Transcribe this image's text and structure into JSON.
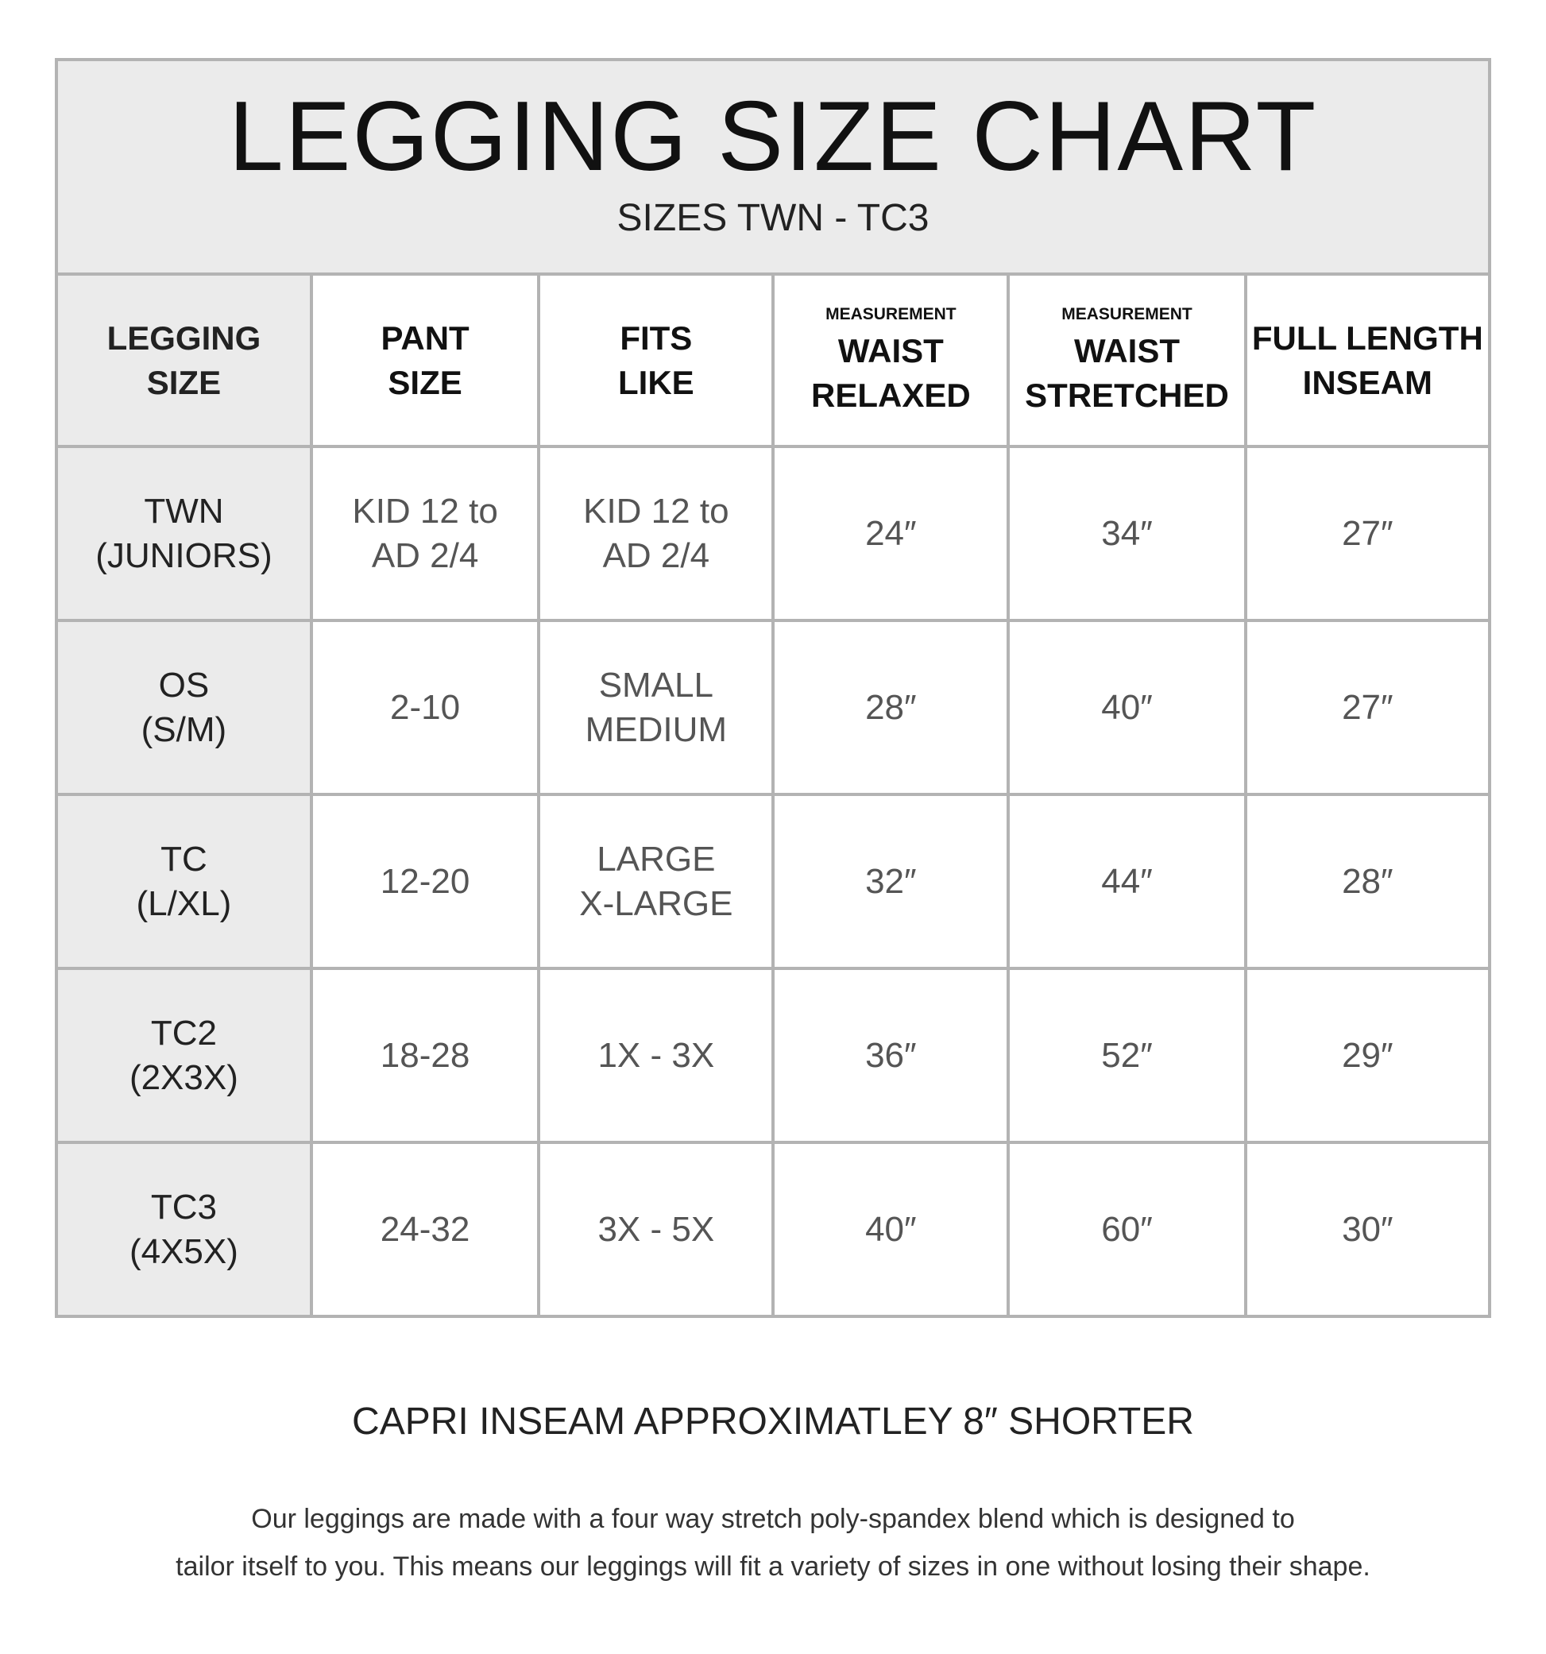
{
  "title": "LEGGING SIZE CHART",
  "subtitle": "SIZES TWN - TC3",
  "headers": [
    {
      "pre": "",
      "line1": "LEGGING",
      "line2": "SIZE"
    },
    {
      "pre": "",
      "line1": "PANT",
      "line2": "SIZE"
    },
    {
      "pre": "",
      "line1": "FITS",
      "line2": "LIKE"
    },
    {
      "pre": "MEASUREMENT",
      "line1": "WAIST",
      "line2": "RELAXED"
    },
    {
      "pre": "MEASUREMENT",
      "line1": "WAIST",
      "line2": "STRETCHED"
    },
    {
      "pre": "",
      "line1": "FULL LENGTH",
      "line2": "INSEAM"
    }
  ],
  "rows": [
    {
      "size": [
        "TWN",
        "(JUNIORS)"
      ],
      "pant": [
        "KID 12 to",
        "AD 2/4"
      ],
      "fits": [
        "KID 12 to",
        "AD 2/4"
      ],
      "relaxed": "24″",
      "stretched": "34″",
      "inseam": "27″"
    },
    {
      "size": [
        "OS",
        "(S/M)"
      ],
      "pant": [
        "2-10",
        ""
      ],
      "fits": [
        "SMALL",
        "MEDIUM"
      ],
      "relaxed": "28″",
      "stretched": "40″",
      "inseam": "27″"
    },
    {
      "size": [
        "TC",
        "(L/XL)"
      ],
      "pant": [
        "12-20",
        ""
      ],
      "fits": [
        "LARGE",
        "X-LARGE"
      ],
      "relaxed": "32″",
      "stretched": "44″",
      "inseam": "28″"
    },
    {
      "size": [
        "TC2",
        "(2X3X)"
      ],
      "pant": [
        "18-28",
        ""
      ],
      "fits": [
        "1X - 3X",
        ""
      ],
      "relaxed": "36″",
      "stretched": "52″",
      "inseam": "29″"
    },
    {
      "size": [
        "TC3",
        "(4X5X)"
      ],
      "pant": [
        "24-32",
        ""
      ],
      "fits": [
        "3X - 5X",
        ""
      ],
      "relaxed": "40″",
      "stretched": "60″",
      "inseam": "30″"
    }
  ],
  "capri_note": "CAPRI INSEAM APPROXIMATLEY 8″ SHORTER",
  "description": [
    "Our leggings are made with a four way stretch poly-spandex blend which is designed to",
    "tailor itself to you. This means our leggings will fit a variety of sizes in one without losing their shape."
  ],
  "colors": {
    "border": "#b3b3b3",
    "header_fill": "#ebebeb"
  }
}
